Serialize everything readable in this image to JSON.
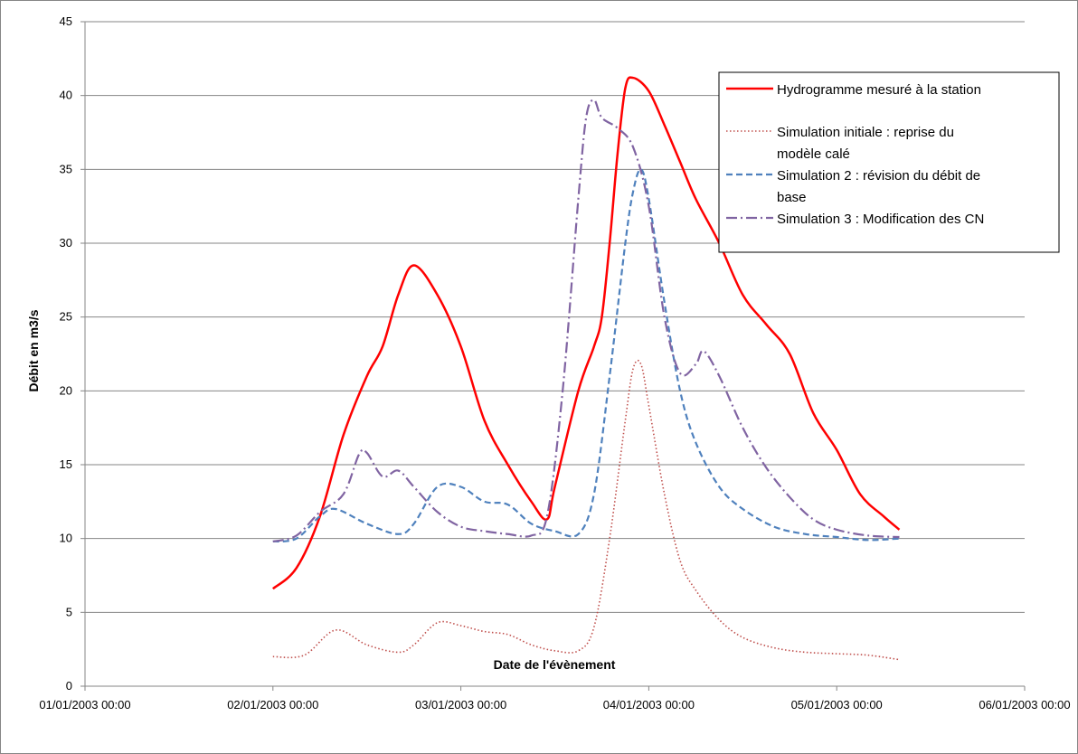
{
  "chart_data": {
    "type": "line",
    "xlabel": "Date de l'évènement",
    "ylabel": "Débit en m3/s",
    "ylim": [
      0,
      45
    ],
    "y_ticks": [
      0,
      5,
      10,
      15,
      20,
      25,
      30,
      35,
      40,
      45
    ],
    "x_range": [
      "01/01/2003 00:00",
      "06/01/2003 00:00"
    ],
    "x_ticks": [
      "01/01/2003 00:00",
      "02/01/2003 00:00",
      "03/01/2003 00:00",
      "04/01/2003 00:00",
      "05/01/2003 00:00",
      "06/01/2003 00:00"
    ],
    "grid": "horizontal",
    "legend_position": "top-right",
    "series": [
      {
        "name": "Hydrogramme mesuré à la station",
        "legend_lines": [
          "Hydrogramme mesuré à la station"
        ],
        "color": "#ff0000",
        "style": "solid",
        "points": [
          [
            "02/01/2003 00:00",
            6.6
          ],
          [
            "02/01/2003 03:00",
            8.0
          ],
          [
            "02/01/2003 06:00",
            11.5
          ],
          [
            "02/01/2003 09:00",
            17.0
          ],
          [
            "02/01/2003 12:00",
            21.0
          ],
          [
            "02/01/2003 14:00",
            23.0
          ],
          [
            "02/01/2003 16:00",
            26.5
          ],
          [
            "02/01/2003 18:00",
            28.5
          ],
          [
            "02/01/2003 21:00",
            26.5
          ],
          [
            "03/01/2003 00:00",
            23.0
          ],
          [
            "03/01/2003 03:00",
            18.0
          ],
          [
            "03/01/2003 06:00",
            15.0
          ],
          [
            "03/01/2003 09:00",
            12.5
          ],
          [
            "03/01/2003 11:00",
            11.3
          ],
          [
            "03/01/2003 12:00",
            13.5
          ],
          [
            "03/01/2003 15:00",
            20.0
          ],
          [
            "03/01/2003 17:00",
            23.0
          ],
          [
            "03/01/2003 18:00",
            25.0
          ],
          [
            "03/01/2003 19:00",
            30.0
          ],
          [
            "03/01/2003 20:00",
            36.0
          ],
          [
            "03/01/2003 21:00",
            40.5
          ],
          [
            "03/01/2003 22:00",
            41.2
          ],
          [
            "04/01/2003 00:00",
            40.3
          ],
          [
            "04/01/2003 02:00",
            38.0
          ],
          [
            "04/01/2003 04:00",
            35.5
          ],
          [
            "04/01/2003 06:00",
            33.0
          ],
          [
            "04/01/2003 09:00",
            30.0
          ],
          [
            "04/01/2003 12:00",
            26.5
          ],
          [
            "04/01/2003 15:00",
            24.5
          ],
          [
            "04/01/2003 18:00",
            22.5
          ],
          [
            "04/01/2003 21:00",
            18.5
          ],
          [
            "05/01/2003 00:00",
            16.0
          ],
          [
            "05/01/2003 03:00",
            13.0
          ],
          [
            "05/01/2003 06:00",
            11.5
          ],
          [
            "05/01/2003 08:00",
            10.6
          ]
        ]
      },
      {
        "name": "Simulation initiale : reprise du modèle calé",
        "legend_lines": [
          "Simulation initiale : reprise du",
          "modèle calé"
        ],
        "color": "#c0504d",
        "style": "dotted",
        "points": [
          [
            "02/01/2003 00:00",
            2.0
          ],
          [
            "02/01/2003 04:00",
            2.1
          ],
          [
            "02/01/2003 08:00",
            3.8
          ],
          [
            "02/01/2003 12:00",
            2.8
          ],
          [
            "02/01/2003 16:00",
            2.3
          ],
          [
            "02/01/2003 18:00",
            2.8
          ],
          [
            "02/01/2003 21:00",
            4.3
          ],
          [
            "03/01/2003 00:00",
            4.1
          ],
          [
            "03/01/2003 03:00",
            3.7
          ],
          [
            "03/01/2003 06:00",
            3.5
          ],
          [
            "03/01/2003 09:00",
            2.8
          ],
          [
            "03/01/2003 12:00",
            2.4
          ],
          [
            "03/01/2003 15:00",
            2.4
          ],
          [
            "03/01/2003 17:00",
            4.0
          ],
          [
            "03/01/2003 19:00",
            10.0
          ],
          [
            "03/01/2003 21:00",
            18.0
          ],
          [
            "03/01/2003 22:00",
            21.5
          ],
          [
            "03/01/2003 23:00",
            21.8
          ],
          [
            "04/01/2003 00:00",
            19.0
          ],
          [
            "04/01/2003 02:00",
            13.0
          ],
          [
            "04/01/2003 04:00",
            8.5
          ],
          [
            "04/01/2003 06:00",
            6.5
          ],
          [
            "04/01/2003 09:00",
            4.5
          ],
          [
            "04/01/2003 12:00",
            3.3
          ],
          [
            "04/01/2003 16:00",
            2.6
          ],
          [
            "04/01/2003 20:00",
            2.3
          ],
          [
            "05/01/2003 00:00",
            2.2
          ],
          [
            "05/01/2003 04:00",
            2.1
          ],
          [
            "05/01/2003 08:00",
            1.8
          ]
        ]
      },
      {
        "name": "Simulation 2 : révision du débit de base",
        "legend_lines": [
          "Simulation 2 : révision du débit de",
          "base"
        ],
        "color": "#4f81bd",
        "style": "dashed",
        "points": [
          [
            "02/01/2003 00:00",
            9.8
          ],
          [
            "02/01/2003 03:00",
            10.0
          ],
          [
            "02/01/2003 06:00",
            11.5
          ],
          [
            "02/01/2003 08:00",
            12.0
          ],
          [
            "02/01/2003 12:00",
            11.0
          ],
          [
            "02/01/2003 16:00",
            10.3
          ],
          [
            "02/01/2003 18:00",
            11.0
          ],
          [
            "02/01/2003 21:00",
            13.5
          ],
          [
            "03/01/2003 00:00",
            13.5
          ],
          [
            "03/01/2003 03:00",
            12.5
          ],
          [
            "03/01/2003 06:00",
            12.3
          ],
          [
            "03/01/2003 09:00",
            11.0
          ],
          [
            "03/01/2003 12:00",
            10.5
          ],
          [
            "03/01/2003 15:00",
            10.3
          ],
          [
            "03/01/2003 17:00",
            13.0
          ],
          [
            "03/01/2003 19:00",
            21.0
          ],
          [
            "03/01/2003 21:00",
            30.0
          ],
          [
            "03/01/2003 22:00",
            33.5
          ],
          [
            "03/01/2003 23:00",
            35.0
          ],
          [
            "04/01/2003 00:00",
            33.0
          ],
          [
            "04/01/2003 02:00",
            26.0
          ],
          [
            "04/01/2003 04:00",
            20.0
          ],
          [
            "04/01/2003 06:00",
            16.5
          ],
          [
            "04/01/2003 09:00",
            13.5
          ],
          [
            "04/01/2003 12:00",
            12.0
          ],
          [
            "04/01/2003 16:00",
            10.8
          ],
          [
            "04/01/2003 20:00",
            10.3
          ],
          [
            "05/01/2003 00:00",
            10.1
          ],
          [
            "05/01/2003 04:00",
            9.9
          ],
          [
            "05/01/2003 08:00",
            10.0
          ]
        ]
      },
      {
        "name": "Simulation 3 : Modification des CN",
        "legend_lines": [
          "Simulation 3 : Modification des CN"
        ],
        "color": "#8064a2",
        "style": "dash-dot",
        "points": [
          [
            "02/01/2003 00:00",
            9.8
          ],
          [
            "02/01/2003 03:00",
            10.2
          ],
          [
            "02/01/2003 06:00",
            11.8
          ],
          [
            "02/01/2003 09:00",
            13.0
          ],
          [
            "02/01/2003 11:00",
            15.7
          ],
          [
            "02/01/2003 12:00",
            15.8
          ],
          [
            "02/01/2003 14:00",
            14.2
          ],
          [
            "02/01/2003 16:00",
            14.6
          ],
          [
            "02/01/2003 18:00",
            13.5
          ],
          [
            "02/01/2003 21:00",
            11.8
          ],
          [
            "03/01/2003 00:00",
            10.8
          ],
          [
            "03/01/2003 03:00",
            10.5
          ],
          [
            "03/01/2003 06:00",
            10.3
          ],
          [
            "03/01/2003 09:00",
            10.2
          ],
          [
            "03/01/2003 11:00",
            11.5
          ],
          [
            "03/01/2003 13:00",
            20.0
          ],
          [
            "03/01/2003 15:00",
            33.0
          ],
          [
            "03/01/2003 16:00",
            38.5
          ],
          [
            "03/01/2003 17:00",
            39.7
          ],
          [
            "03/01/2003 18:00",
            38.5
          ],
          [
            "03/01/2003 20:00",
            37.8
          ],
          [
            "03/01/2003 22:00",
            36.5
          ],
          [
            "04/01/2003 00:00",
            32.5
          ],
          [
            "04/01/2003 02:00",
            25.0
          ],
          [
            "04/01/2003 04:00",
            21.2
          ],
          [
            "04/01/2003 06:00",
            21.8
          ],
          [
            "04/01/2003 07:00",
            22.7
          ],
          [
            "04/01/2003 09:00",
            21.0
          ],
          [
            "04/01/2003 12:00",
            17.5
          ],
          [
            "04/01/2003 15:00",
            14.8
          ],
          [
            "04/01/2003 18:00",
            12.8
          ],
          [
            "04/01/2003 21:00",
            11.3
          ],
          [
            "05/01/2003 00:00",
            10.6
          ],
          [
            "05/01/2003 04:00",
            10.2
          ],
          [
            "05/01/2003 08:00",
            10.1
          ]
        ]
      }
    ]
  }
}
